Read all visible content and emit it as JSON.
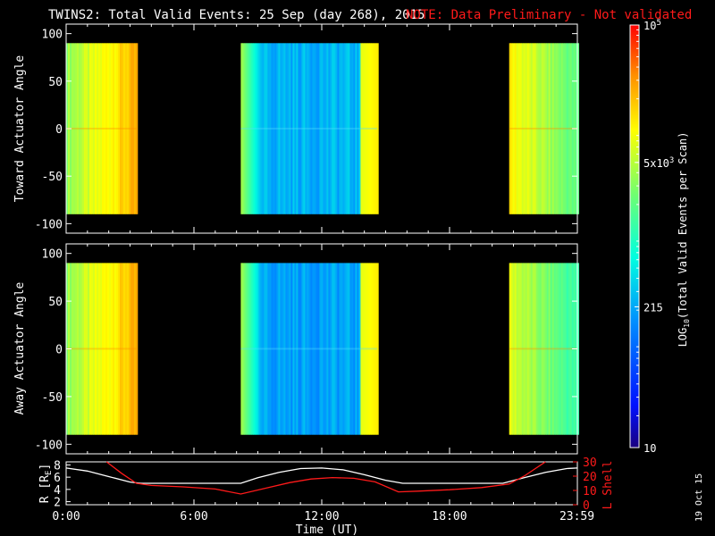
{
  "title": "TWINS2: Total Valid Events: 25 Sep (day 268), 2015",
  "note": "NOTE: Data Preliminary - Not validated",
  "colors": {
    "background": "#000000",
    "foreground": "#ffffff",
    "note": "#ff1a1a",
    "ephemeris_lshell": "#ff1a1a",
    "ephemeris_r": "#ffffff"
  },
  "stamp": "19 Oct 15",
  "chart_data": [
    {
      "type": "heatmap",
      "name": "toward",
      "ylabel": "Toward Actuator Angle",
      "ylim": [
        -110,
        110
      ],
      "yticks": [
        "100",
        "50",
        "0",
        "-50",
        "-100"
      ],
      "ytick_values": [
        100,
        50,
        0,
        -50,
        -100
      ],
      "angle_range": [
        -90,
        90
      ],
      "xlim_hours": [
        0,
        24
      ],
      "data_blocks": [
        {
          "start_hour": 0.0,
          "end_hour": 3.3,
          "log_center": 3.9
        },
        {
          "start_hour": 8.2,
          "end_hour": 14.6,
          "log_center": 2.4
        },
        {
          "start_hour": 20.8,
          "end_hour": 24.0,
          "log_center": 3.6
        }
      ]
    },
    {
      "type": "heatmap",
      "name": "away",
      "ylabel": "Away Actuator Angle",
      "ylim": [
        -110,
        110
      ],
      "yticks": [
        "100",
        "50",
        "0",
        "-50",
        "-100"
      ],
      "ytick_values": [
        100,
        50,
        0,
        -50,
        -100
      ],
      "angle_range": [
        -90,
        90
      ],
      "xlim_hours": [
        0,
        24
      ],
      "data_blocks": [
        {
          "start_hour": 0.0,
          "end_hour": 3.3,
          "log_center": 3.9
        },
        {
          "start_hour": 8.2,
          "end_hour": 14.6,
          "log_center": 2.3
        },
        {
          "start_hour": 20.8,
          "end_hour": 24.0,
          "log_center": 3.4
        }
      ]
    },
    {
      "type": "line",
      "name": "ephemeris",
      "ylabel_left": "R [R",
      "ylabel_left_sub": "E",
      "ylabel_left_end": "]",
      "ylabel_right": "L Shell",
      "yticks_left": [
        "8",
        "6",
        "4",
        "2"
      ],
      "ytick_values_left": [
        8,
        6,
        4,
        2
      ],
      "ylim_left": [
        1.5,
        8.5
      ],
      "yticks_right": [
        "30",
        "20",
        "10",
        "0"
      ],
      "ytick_values_right": [
        30,
        20,
        10,
        0
      ],
      "ylim_right": [
        0,
        30
      ],
      "xlabel": "Time (UT)",
      "xticks": [
        "0:00",
        "6:00",
        "12:00",
        "18:00",
        "23:59"
      ],
      "xtick_values": [
        0,
        6,
        12,
        18,
        23.98
      ],
      "series": [
        {
          "name": "R",
          "axis": "left",
          "x": [
            0,
            1,
            2,
            3,
            3.5,
            5,
            6,
            7,
            8.2,
            9,
            10,
            11,
            12,
            13,
            14,
            15,
            15.8,
            17,
            19,
            20.5,
            21.5,
            22.5,
            23.5,
            24
          ],
          "y": [
            7.5,
            7.0,
            6.1,
            5.2,
            5.0,
            5.0,
            5.0,
            5.0,
            5.0,
            5.9,
            6.8,
            7.4,
            7.5,
            7.2,
            6.4,
            5.5,
            5.0,
            5.0,
            5.0,
            5.0,
            5.9,
            6.8,
            7.4,
            7.5
          ]
        },
        {
          "name": "L Shell",
          "axis": "right",
          "x": [
            1.9,
            2.6,
            3.3,
            4,
            5.5,
            7,
            8.2,
            9.5,
            10.5,
            11.5,
            12.5,
            13.5,
            14.5,
            15.6,
            16.5,
            18,
            19.5,
            20.8,
            21.5,
            22,
            22.5
          ],
          "y": [
            30,
            22,
            15,
            13.5,
            12.5,
            11,
            7.5,
            12,
            15.5,
            18,
            19,
            18.5,
            16,
            9,
            9.5,
            10.5,
            12,
            14.5,
            20,
            25,
            30
          ]
        }
      ]
    }
  ],
  "colorbar": {
    "label": "LOG",
    "label_sub": "10",
    "label_rest": "(Total Valid Events per Scan)",
    "range_log": [
      1,
      5
    ],
    "ticks": [
      {
        "base": "10",
        "exp": "5",
        "value_log": 5
      },
      {
        "base": "5x10",
        "exp": "3",
        "value_log": 3.699
      },
      {
        "base": "215",
        "exp": "",
        "value_log": 2.332
      },
      {
        "base": "10",
        "exp": "",
        "value_log": 1
      }
    ]
  }
}
